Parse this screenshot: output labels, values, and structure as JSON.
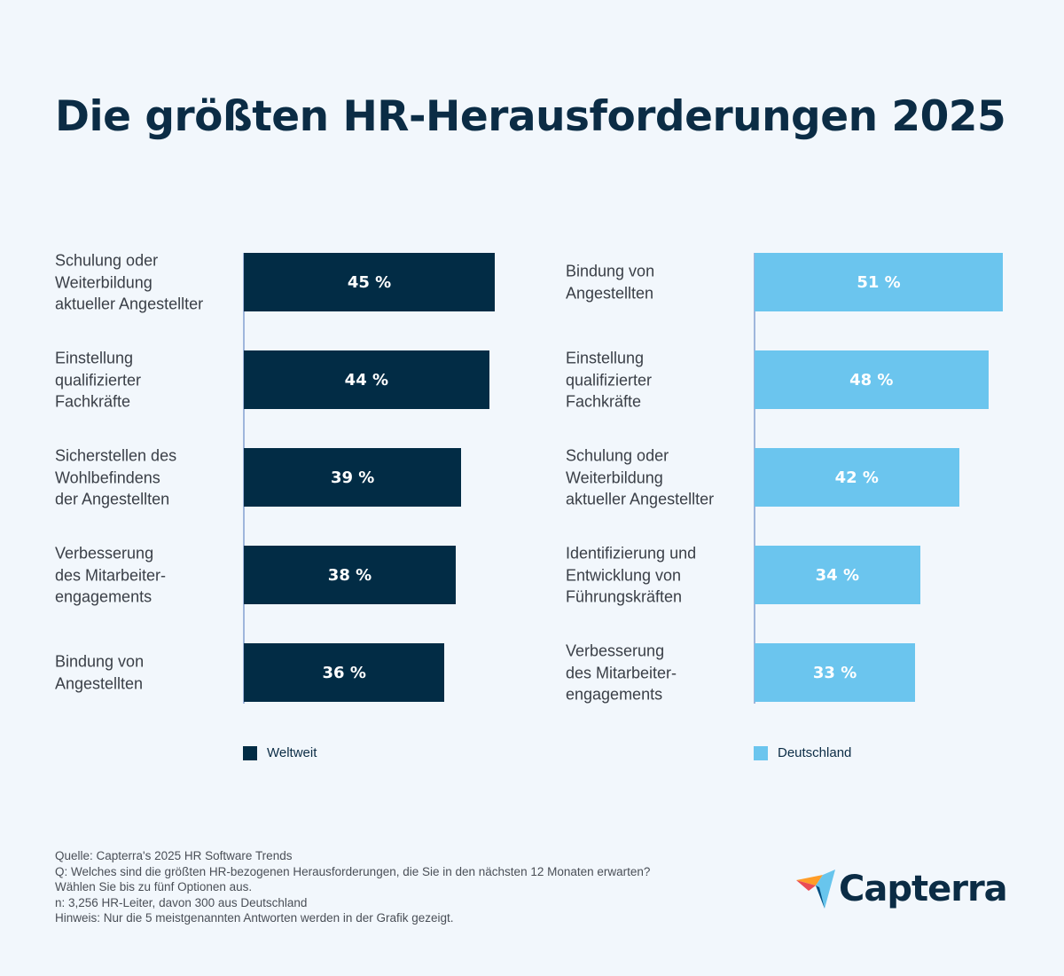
{
  "title": "Die größten HR-Herausforderungen 2025",
  "chart_data": [
    {
      "type": "bar",
      "orientation": "horizontal",
      "series_name": "Weltweit",
      "color": "#022c45",
      "categories": [
        [
          "Schulung oder",
          "Weiterbildung",
          "aktueller Angestellter"
        ],
        [
          "Einstellung",
          "qualifizierter",
          "Fachkräfte"
        ],
        [
          "Sicherstellen des",
          "Wohlbefindens",
          "der Angestellten"
        ],
        [
          "Verbesserung",
          "des Mitarbeiter-",
          "engagements"
        ],
        [
          "Bindung von",
          "Angestellten"
        ]
      ],
      "values": [
        45,
        44,
        39,
        38,
        36
      ],
      "value_labels": [
        "45 %",
        "44 %",
        "39 %",
        "38 %",
        "36 %"
      ],
      "unit": "%"
    },
    {
      "type": "bar",
      "orientation": "horizontal",
      "series_name": "Deutschland",
      "color": "#6bc5ee",
      "categories": [
        [
          "Bindung von",
          "Angestellten"
        ],
        [
          "Einstellung",
          "qualifizierter",
          "Fachkräfte"
        ],
        [
          "Schulung oder",
          "Weiterbildung",
          "aktueller Angestellter"
        ],
        [
          "Identifizierung und",
          "Entwicklung von",
          "Führungskräften"
        ],
        [
          "Verbesserung",
          "des Mitarbeiter-",
          "engagements"
        ]
      ],
      "values": [
        51,
        48,
        42,
        34,
        33
      ],
      "value_labels": [
        "51 %",
        "48 %",
        "42 %",
        "34 %",
        "33 %"
      ],
      "unit": "%"
    }
  ],
  "legend": [
    "Weltweit",
    "Deutschland"
  ],
  "notes": [
    "Quelle: Capterra's 2025 HR Software Trends",
    "Q: Welches sind die größten HR-bezogenen Herausforderungen, die Sie in den nächsten 12 Monaten erwarten?",
    "Wählen Sie bis zu fünf Optionen aus.",
    "n: 3,256 HR-Leiter, davon 300 aus Deutschland",
    "Hinweis: Nur die 5 meistgenannten Antworten werden in der Grafik gezeigt."
  ],
  "logo": {
    "text": "Capterra"
  }
}
